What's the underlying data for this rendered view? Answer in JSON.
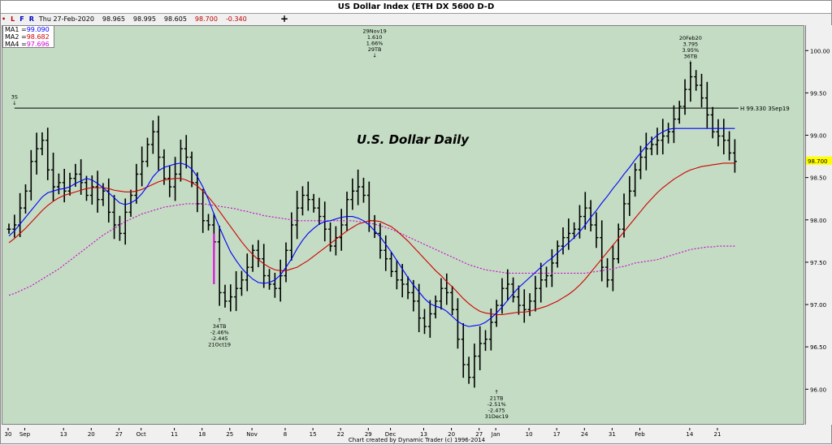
{
  "window": {
    "title": "US Dollar Index (ETH DX 5600 D-D",
    "footer": "Chart created by Dynamic Trader  (c) 1996-2014"
  },
  "toolbar": {
    "buttons": [
      "L",
      "F",
      "R"
    ],
    "button_colors": [
      "#c00000",
      "#0000c0",
      "#0000c0"
    ],
    "date": "Thu 27-Feb-2020",
    "open": "98.965",
    "high": "98.995",
    "low": "98.605",
    "close": "98.700",
    "change": "-0.340",
    "change_color": "#c00000",
    "crosshair_icon": "crosshair-plus-icon"
  },
  "legend": [
    {
      "label": "MA1 =",
      "value": "99.090",
      "color": "#0000ff"
    },
    {
      "label": "MA2 =",
      "value": "98.682",
      "color": "#d00000"
    },
    {
      "label": "MA4 =",
      "value": "97.696",
      "color": "#d000d0"
    }
  ],
  "chart_data": {
    "type": "ohlc-bar",
    "title": "U.S. Dollar Daily",
    "ylim": [
      95.6,
      100.3
    ],
    "yticks": [
      96.0,
      96.5,
      97.0,
      97.5,
      98.0,
      98.5,
      99.0,
      99.5,
      100.0
    ],
    "ytick_labels": [
      "96.00",
      "96.50",
      "97.00",
      "97.50",
      "98.00",
      "98.50",
      "99.00",
      "99.50",
      "100.00"
    ],
    "last_price_label": "98.700",
    "last_price": 98.7,
    "xtick_labels": [
      "30",
      "Sep",
      "13",
      "20",
      "27",
      "Oct",
      "11",
      "18",
      "25",
      "Nov",
      "8",
      "15",
      "22",
      "29",
      "Dec",
      "13",
      "20",
      "27",
      "Jan",
      "10",
      "17",
      "24",
      "31",
      "Feb",
      "14",
      "21"
    ],
    "xtick_bars": [
      0,
      3,
      10,
      15,
      20,
      24,
      30,
      35,
      40,
      44,
      50,
      55,
      60,
      65,
      69,
      75,
      80,
      85,
      88,
      94,
      99,
      104,
      109,
      114,
      123,
      128
    ],
    "bars_count": 132,
    "closes": [
      97.9,
      97.95,
      98.15,
      98.35,
      98.7,
      98.85,
      98.95,
      98.6,
      98.4,
      98.45,
      98.35,
      98.5,
      98.55,
      98.45,
      98.3,
      98.4,
      98.25,
      98.35,
      98.1,
      97.95,
      97.85,
      98.1,
      98.3,
      98.55,
      98.7,
      98.9,
      99.05,
      98.75,
      98.5,
      98.4,
      98.55,
      98.85,
      98.75,
      98.45,
      98.2,
      98.0,
      97.95,
      97.75,
      97.15,
      97.05,
      97.1,
      97.2,
      97.3,
      97.45,
      97.65,
      97.55,
      97.35,
      97.25,
      97.2,
      97.35,
      97.65,
      97.95,
      98.15,
      98.3,
      98.25,
      98.15,
      98.05,
      97.9,
      97.7,
      97.8,
      97.95,
      98.25,
      98.35,
      98.4,
      98.3,
      98.0,
      97.85,
      97.65,
      97.55,
      97.4,
      97.3,
      97.25,
      97.15,
      97.05,
      96.85,
      96.75,
      96.9,
      97.05,
      97.2,
      97.15,
      96.95,
      96.6,
      96.3,
      96.15,
      96.4,
      96.55,
      96.6,
      96.8,
      97.0,
      97.2,
      97.25,
      97.1,
      97.0,
      96.95,
      97.05,
      97.2,
      97.3,
      97.35,
      97.5,
      97.7,
      97.8,
      97.85,
      97.9,
      98.05,
      98.15,
      97.95,
      97.8,
      97.45,
      97.3,
      97.55,
      97.9,
      98.2,
      98.35,
      98.6,
      98.75,
      98.85,
      98.9,
      98.95,
      99.0,
      99.05,
      99.2,
      99.35,
      99.55,
      99.7,
      99.6,
      99.45,
      99.25,
      99.05,
      99.0,
      98.95,
      98.8,
      98.7
    ],
    "hline": {
      "value": 99.33,
      "label": "H 99.330 3Sep19"
    },
    "magenta_bar": {
      "index": 37,
      "low": 97.25,
      "high": 97.85
    },
    "ma1": [
      97.82,
      97.88,
      97.96,
      98.04,
      98.12,
      98.2,
      98.28,
      98.33,
      98.35,
      98.37,
      98.38,
      98.4,
      98.44,
      98.47,
      98.5,
      98.48,
      98.44,
      98.39,
      98.33,
      98.27,
      98.21,
      98.19,
      98.21,
      98.25,
      98.32,
      98.41,
      98.52,
      98.59,
      98.63,
      98.65,
      98.67,
      98.68,
      98.66,
      98.61,
      98.52,
      98.4,
      98.25,
      98.08,
      97.92,
      97.77,
      97.63,
      97.53,
      97.44,
      97.37,
      97.31,
      97.27,
      97.26,
      97.27,
      97.3,
      97.36,
      97.45,
      97.55,
      97.67,
      97.77,
      97.85,
      97.91,
      97.96,
      97.99,
      98.0,
      98.02,
      98.04,
      98.05,
      98.05,
      98.03,
      98.0,
      97.95,
      97.88,
      97.81,
      97.72,
      97.63,
      97.53,
      97.43,
      97.33,
      97.24,
      97.16,
      97.08,
      97.02,
      96.99,
      96.97,
      96.93,
      96.87,
      96.81,
      96.77,
      96.75,
      96.76,
      96.77,
      96.8,
      96.85,
      96.91,
      96.98,
      97.06,
      97.14,
      97.21,
      97.27,
      97.33,
      97.39,
      97.45,
      97.51,
      97.56,
      97.62,
      97.68,
      97.74,
      97.8,
      97.87,
      97.95,
      98.04,
      98.12,
      98.21,
      98.29,
      98.38,
      98.46,
      98.55,
      98.63,
      98.72,
      98.8,
      98.88,
      98.95,
      99.01,
      99.05,
      99.08,
      99.09,
      99.09,
      99.09,
      99.09,
      99.09,
      99.09,
      99.09,
      99.09,
      99.09,
      99.09,
      99.09,
      99.09
    ],
    "ma2": [
      97.74,
      97.79,
      97.85,
      97.91,
      97.98,
      98.05,
      98.12,
      98.18,
      98.23,
      98.27,
      98.3,
      98.32,
      98.34,
      98.36,
      98.38,
      98.39,
      98.39,
      98.39,
      98.38,
      98.36,
      98.35,
      98.34,
      98.34,
      98.35,
      98.37,
      98.4,
      98.43,
      98.46,
      98.48,
      98.49,
      98.5,
      98.5,
      98.48,
      98.45,
      98.41,
      98.35,
      98.28,
      98.2,
      98.11,
      98.02,
      97.93,
      97.84,
      97.75,
      97.67,
      97.6,
      97.54,
      97.49,
      97.45,
      97.42,
      97.41,
      97.41,
      97.43,
      97.45,
      97.49,
      97.53,
      97.58,
      97.63,
      97.68,
      97.73,
      97.78,
      97.83,
      97.88,
      97.92,
      97.96,
      97.98,
      98.0,
      98.0,
      97.99,
      97.96,
      97.93,
      97.88,
      97.82,
      97.76,
      97.69,
      97.62,
      97.55,
      97.48,
      97.41,
      97.35,
      97.28,
      97.22,
      97.15,
      97.08,
      97.02,
      96.97,
      96.93,
      96.91,
      96.9,
      96.89,
      96.89,
      96.9,
      96.91,
      96.92,
      96.92,
      96.93,
      96.95,
      96.97,
      96.99,
      97.02,
      97.05,
      97.09,
      97.13,
      97.18,
      97.24,
      97.31,
      97.39,
      97.47,
      97.55,
      97.63,
      97.71,
      97.79,
      97.87,
      97.95,
      98.03,
      98.11,
      98.19,
      98.26,
      98.33,
      98.39,
      98.44,
      98.49,
      98.53,
      98.57,
      98.6,
      98.62,
      98.64,
      98.65,
      98.66,
      98.67,
      98.68,
      98.68,
      98.68
    ],
    "ma4": [
      97.12,
      97.14,
      97.17,
      97.2,
      97.23,
      97.27,
      97.31,
      97.35,
      97.39,
      97.43,
      97.48,
      97.53,
      97.58,
      97.63,
      97.68,
      97.73,
      97.78,
      97.83,
      97.87,
      97.91,
      97.95,
      97.99,
      98.02,
      98.05,
      98.08,
      98.1,
      98.12,
      98.14,
      98.16,
      98.17,
      98.18,
      98.19,
      98.2,
      98.2,
      98.2,
      98.2,
      98.19,
      98.18,
      98.17,
      98.16,
      98.15,
      98.14,
      98.12,
      98.11,
      98.09,
      98.08,
      98.06,
      98.05,
      98.04,
      98.03,
      98.02,
      98.01,
      98.0,
      98.0,
      98.0,
      98.0,
      98.0,
      98.0,
      98.0,
      98.0,
      98.0,
      98.0,
      98.0,
      97.99,
      97.98,
      97.97,
      97.96,
      97.94,
      97.92,
      97.9,
      97.87,
      97.84,
      97.81,
      97.78,
      97.75,
      97.72,
      97.69,
      97.66,
      97.63,
      97.6,
      97.57,
      97.54,
      97.51,
      97.48,
      97.46,
      97.44,
      97.42,
      97.41,
      97.4,
      97.39,
      97.38,
      97.38,
      97.38,
      97.38,
      97.38,
      97.38,
      97.38,
      97.38,
      97.38,
      97.38,
      97.38,
      97.38,
      97.38,
      97.38,
      97.38,
      97.39,
      97.4,
      97.41,
      97.42,
      97.43,
      97.45,
      97.46,
      97.48,
      97.5,
      97.51,
      97.52,
      97.53,
      97.54,
      97.56,
      97.58,
      97.6,
      97.62,
      97.64,
      97.66,
      97.67,
      97.68,
      97.69,
      97.69,
      97.7,
      97.7,
      97.7,
      97.7
    ],
    "annotations": [
      {
        "bar": 1,
        "value": 99.33,
        "position": "above",
        "lines": [
          "3S",
          "↓"
        ]
      },
      {
        "bar": 66,
        "value": 99.89,
        "position": "above",
        "lines": [
          "29Nov19",
          "1.610",
          "1.66%",
          "29TB",
          "↓"
        ]
      },
      {
        "bar": 123,
        "value": 99.81,
        "position": "above",
        "lines": [
          "20Feb20",
          "3.795",
          "3.95%",
          "36TB",
          "↓"
        ]
      },
      {
        "bar": 38,
        "value": 96.9,
        "position": "below",
        "lines": [
          "↑",
          "34TB",
          "-2.46%",
          "-2.445",
          "21Oct19"
        ]
      },
      {
        "bar": 88,
        "value": 96.05,
        "position": "below",
        "lines": [
          "↑",
          "21TB",
          "-2.51%",
          "-2.475",
          "31Dec19"
        ]
      }
    ]
  }
}
